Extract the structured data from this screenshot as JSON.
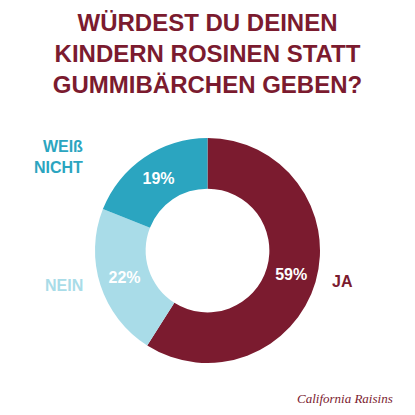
{
  "chart_data": {
    "type": "pie",
    "title": "WÜRDEST DU DEINEN KINDERN ROSINEN STATT GUMMIBÄRCHEN GEBEN?",
    "categories": [
      "JA",
      "NEIN",
      "WEIß NICHT"
    ],
    "values": [
      59,
      22,
      19
    ],
    "value_labels": [
      "59%",
      "22%",
      "19%"
    ],
    "colors": [
      "#7b1b2f",
      "#a9dce8",
      "#2ba5c0"
    ],
    "data_labels": true,
    "annotations": [
      "California Raisins"
    ]
  }
}
